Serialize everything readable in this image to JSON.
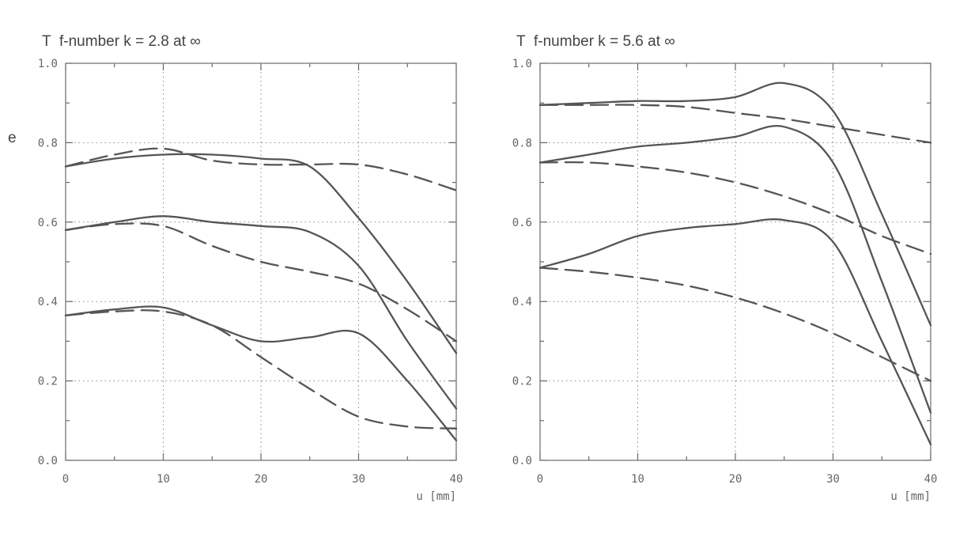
{
  "figure_fragment": "e",
  "chart_data": [
    {
      "type": "line",
      "title_axis": "T",
      "title": "f-number k = 2.8 at ∞",
      "xlabel": "u [mm]",
      "ylabel": "",
      "xlim": [
        0,
        40
      ],
      "ylim": [
        0,
        1
      ],
      "xticks": [
        "0",
        "10",
        "20",
        "30",
        "40"
      ],
      "yticks": [
        "0.0",
        "0.2",
        "0.4",
        "0.6",
        "0.8",
        "1.0"
      ],
      "grid": true,
      "series": [
        {
          "style": "solid",
          "x": [
            0,
            5,
            10,
            15,
            20,
            25,
            30,
            35,
            40
          ],
          "y": [
            0.74,
            0.76,
            0.77,
            0.77,
            0.76,
            0.74,
            0.61,
            0.45,
            0.27
          ]
        },
        {
          "style": "dashed",
          "x": [
            0,
            5,
            10,
            15,
            20,
            25,
            30,
            35,
            40
          ],
          "y": [
            0.74,
            0.77,
            0.785,
            0.755,
            0.745,
            0.745,
            0.745,
            0.72,
            0.68
          ]
        },
        {
          "style": "solid",
          "x": [
            0,
            5,
            10,
            15,
            20,
            25,
            30,
            35,
            40
          ],
          "y": [
            0.58,
            0.6,
            0.615,
            0.6,
            0.59,
            0.575,
            0.49,
            0.3,
            0.13
          ]
        },
        {
          "style": "dashed",
          "x": [
            0,
            5,
            10,
            15,
            20,
            25,
            30,
            35,
            40
          ],
          "y": [
            0.58,
            0.595,
            0.59,
            0.54,
            0.5,
            0.475,
            0.445,
            0.38,
            0.3
          ]
        },
        {
          "style": "solid",
          "x": [
            0,
            5,
            10,
            15,
            20,
            25,
            30,
            35,
            40
          ],
          "y": [
            0.365,
            0.38,
            0.385,
            0.34,
            0.3,
            0.31,
            0.32,
            0.2,
            0.05
          ]
        },
        {
          "style": "dashed",
          "x": [
            0,
            5,
            10,
            15,
            20,
            25,
            30,
            35,
            40
          ],
          "y": [
            0.365,
            0.375,
            0.375,
            0.34,
            0.26,
            0.18,
            0.11,
            0.085,
            0.08
          ]
        }
      ]
    },
    {
      "type": "line",
      "title_axis": "T",
      "title": "f-number k = 5.6 at ∞",
      "xlabel": "u [mm]",
      "ylabel": "",
      "xlim": [
        0,
        40
      ],
      "ylim": [
        0,
        1
      ],
      "xticks": [
        "0",
        "10",
        "20",
        "30",
        "40"
      ],
      "yticks": [
        "0.0",
        "0.2",
        "0.4",
        "0.6",
        "0.8",
        "1.0"
      ],
      "grid": true,
      "series": [
        {
          "style": "solid",
          "x": [
            0,
            5,
            10,
            15,
            20,
            25,
            30,
            35,
            40
          ],
          "y": [
            0.895,
            0.9,
            0.905,
            0.905,
            0.915,
            0.95,
            0.88,
            0.62,
            0.34
          ]
        },
        {
          "style": "dashed",
          "x": [
            0,
            5,
            10,
            15,
            20,
            25,
            30,
            35,
            40
          ],
          "y": [
            0.895,
            0.895,
            0.895,
            0.89,
            0.875,
            0.86,
            0.84,
            0.82,
            0.8
          ]
        },
        {
          "style": "solid",
          "x": [
            0,
            5,
            10,
            15,
            20,
            25,
            30,
            35,
            40
          ],
          "y": [
            0.75,
            0.77,
            0.79,
            0.8,
            0.815,
            0.84,
            0.75,
            0.45,
            0.12
          ]
        },
        {
          "style": "dashed",
          "x": [
            0,
            5,
            10,
            15,
            20,
            25,
            30,
            35,
            40
          ],
          "y": [
            0.75,
            0.75,
            0.74,
            0.725,
            0.7,
            0.665,
            0.62,
            0.565,
            0.52
          ]
        },
        {
          "style": "solid",
          "x": [
            0,
            5,
            10,
            15,
            20,
            25,
            30,
            35,
            40
          ],
          "y": [
            0.485,
            0.52,
            0.565,
            0.585,
            0.595,
            0.605,
            0.55,
            0.3,
            0.04
          ]
        },
        {
          "style": "dashed",
          "x": [
            0,
            5,
            10,
            15,
            20,
            25,
            30,
            35,
            40
          ],
          "y": [
            0.485,
            0.475,
            0.46,
            0.44,
            0.41,
            0.37,
            0.32,
            0.26,
            0.2
          ]
        }
      ]
    }
  ]
}
